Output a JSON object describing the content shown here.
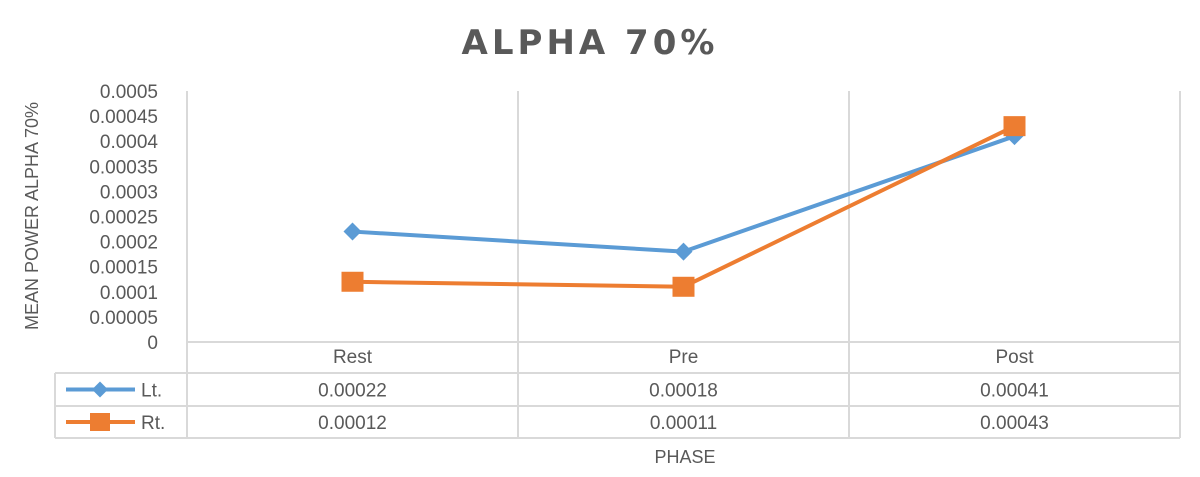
{
  "chart_data": {
    "type": "line",
    "title": "ALPHA 70%",
    "xlabel": "PHASE",
    "ylabel": "MEAN POWER ALPHA 70%",
    "categories": [
      "Rest",
      "Pre",
      "Post"
    ],
    "ylim": [
      0,
      0.0005
    ],
    "yticks": [
      "0",
      "0.00005",
      "0.0001",
      "0.00015",
      "0.0002",
      "0.00025",
      "0.0003",
      "0.00035",
      "0.0004",
      "0.00045",
      "0.0005"
    ],
    "grid": true,
    "data_table": true,
    "series": [
      {
        "name": "Lt.",
        "values": [
          0.00022,
          0.00018,
          0.00041
        ],
        "labels": [
          "0.00022",
          "0.00018",
          "0.00041"
        ],
        "color": "#5b9bd5",
        "marker": "diamond"
      },
      {
        "name": "Rt.",
        "values": [
          0.00012,
          0.00011,
          0.00043
        ],
        "labels": [
          "0.00012",
          "0.00011",
          "0.00043"
        ],
        "color": "#ed7d31",
        "marker": "square"
      }
    ]
  }
}
